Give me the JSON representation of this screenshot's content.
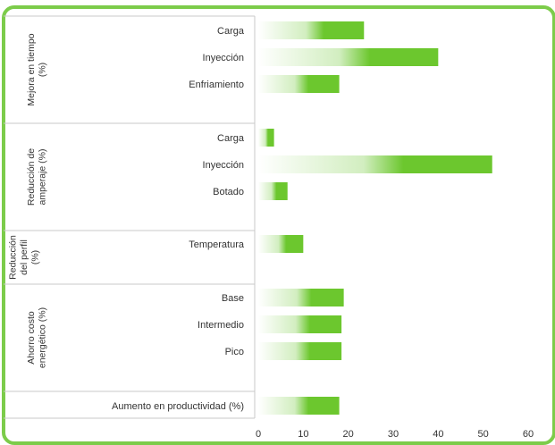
{
  "chart_data": {
    "type": "bar",
    "orientation": "horizontal",
    "title": "",
    "xlabel": "",
    "ylabel": "",
    "xlim": [
      0,
      60
    ],
    "xticks": [
      0,
      10,
      20,
      30,
      40,
      50,
      60
    ],
    "grid": false,
    "legend": "none",
    "bar_color": "#6cc72e",
    "groups": [
      {
        "label": "Mejora en tiempo (%)",
        "label_lines": [
          "Mejora en tiempo",
          "(%)"
        ],
        "categories": [
          "Carga",
          "Inyección",
          "Enfriamiento"
        ],
        "values": [
          23.5,
          40,
          18
        ]
      },
      {
        "label": "Reducción de amperaje (%)",
        "label_lines": [
          "Reducción de",
          "amperaje (%)"
        ],
        "categories": [
          "Carga",
          "Inyección",
          "Botado"
        ],
        "values": [
          3.5,
          52,
          6.5
        ]
      },
      {
        "label": "Reducción del perfil (%)",
        "label_lines": [
          "Reducción",
          "del perfil",
          "(%)"
        ],
        "categories": [
          "Temperatura"
        ],
        "values": [
          10
        ]
      },
      {
        "label": "Ahorro costo energético (%)",
        "label_lines": [
          "Ahorro costo",
          "energético (%)"
        ],
        "categories": [
          "Base",
          "Intermedio",
          "Pico"
        ],
        "values": [
          19,
          18.5,
          18.5
        ]
      },
      {
        "label": "",
        "label_lines": [],
        "categories": [
          "Aumento en productividad (%)"
        ],
        "values": [
          18
        ]
      }
    ]
  }
}
